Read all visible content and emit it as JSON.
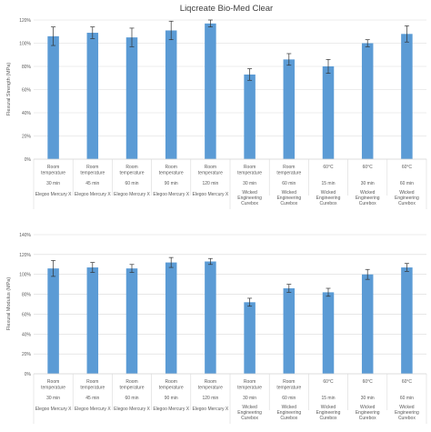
{
  "title": "Liqcreate Bio-Med Clear",
  "colors": {
    "bar": "#5b9bd5",
    "error_bar": "#333333",
    "grid": "#d9d9d9",
    "text": "#595959",
    "title": "#404040"
  },
  "chart_data": [
    {
      "type": "bar",
      "ylabel": "Flexural Strength (MPa)",
      "ylim": [
        0,
        120
      ],
      "yticks": [
        "0%",
        "20%",
        "40%",
        "60%",
        "80%",
        "100%",
        "120%"
      ],
      "grid": true,
      "categories": [
        {
          "condition": [
            "Room",
            "temperature"
          ],
          "time": "30 min",
          "group": "Elegoo Mercury X"
        },
        {
          "condition": [
            "Room",
            "temperature"
          ],
          "time": "45 min",
          "group": "Elegoo Mercury X"
        },
        {
          "condition": [
            "Room",
            "temperature"
          ],
          "time": "60 min",
          "group": "Elegoo Mercury X"
        },
        {
          "condition": [
            "Room",
            "temperature"
          ],
          "time": "90 min",
          "group": "Elegoo Mercury X"
        },
        {
          "condition": [
            "Room",
            "temperature"
          ],
          "time": "120 min",
          "group": "Elegoo Mercury X"
        },
        {
          "condition": [
            "Room",
            "temperature"
          ],
          "time": "30 min",
          "group": "Wicked Engineering Curebox"
        },
        {
          "condition": [
            "Room",
            "temperature"
          ],
          "time": "60 min",
          "group": "Wicked Engineering Curebox"
        },
        {
          "condition": [
            "60°C"
          ],
          "time": "15 min",
          "group": "Wicked Engineering Curebox"
        },
        {
          "condition": [
            "60°C"
          ],
          "time": "30 min",
          "group": "Wicked Engineering Curebox"
        },
        {
          "condition": [
            "60°C"
          ],
          "time": "60 min",
          "group": "Wicked Engineering Curebox"
        }
      ],
      "group_labels": [
        {
          "text": [
            "Elegoo Mercury X"
          ],
          "count": 5
        },
        {
          "text": [
            "Wicked",
            "Engineering",
            "Curebox"
          ],
          "count": 5
        }
      ],
      "values": [
        106,
        109,
        105,
        111,
        117,
        73,
        86,
        80,
        100,
        108
      ],
      "errors": [
        8,
        5,
        8,
        8,
        3,
        5,
        5,
        6,
        3,
        7
      ]
    },
    {
      "type": "bar",
      "ylabel": "Flexural Modulus (MPa)",
      "ylim": [
        0,
        140
      ],
      "yticks": [
        "0%",
        "20%",
        "40%",
        "60%",
        "80%",
        "100%",
        "120%",
        "140%"
      ],
      "grid": true,
      "categories": [
        {
          "condition": [
            "Room",
            "temperature"
          ],
          "time": "30 min",
          "group": "Elegoo Mercury X"
        },
        {
          "condition": [
            "Room",
            "temperature"
          ],
          "time": "45 min",
          "group": "Elegoo Mercury X"
        },
        {
          "condition": [
            "Room",
            "temperature"
          ],
          "time": "60 min",
          "group": "Elegoo Mercury X"
        },
        {
          "condition": [
            "Room",
            "temperature"
          ],
          "time": "90 min",
          "group": "Elegoo Mercury X"
        },
        {
          "condition": [
            "Room",
            "temperature"
          ],
          "time": "120 min",
          "group": "Elegoo Mercury X"
        },
        {
          "condition": [
            "Room",
            "temperature"
          ],
          "time": "30 min",
          "group": "Wicked Engineering Curebox"
        },
        {
          "condition": [
            "Room",
            "temperature"
          ],
          "time": "60 min",
          "group": "Wicked Engineering Curebox"
        },
        {
          "condition": [
            "60°C"
          ],
          "time": "15 min",
          "group": "Wicked Engineering Curebox"
        },
        {
          "condition": [
            "60°C"
          ],
          "time": "30 min",
          "group": "Wicked Engineering Curebox"
        },
        {
          "condition": [
            "60°C"
          ],
          "time": "60 min",
          "group": "Wicked Engineering Curebox"
        }
      ],
      "group_labels": [
        {
          "text": [
            "Elegoo Mercury X"
          ],
          "count": 5
        },
        {
          "text": [
            "Wicked",
            "Engineering",
            "Curebox"
          ],
          "count": 5
        }
      ],
      "values": [
        106,
        107,
        106,
        112,
        113,
        72,
        86,
        82,
        100,
        107
      ],
      "errors": [
        8,
        5,
        4,
        5,
        3,
        4,
        4,
        4,
        5,
        4
      ]
    }
  ]
}
